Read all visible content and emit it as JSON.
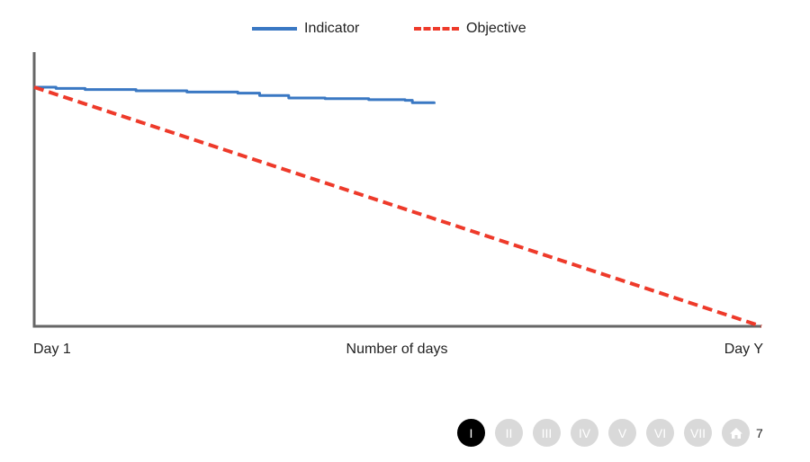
{
  "legend": {
    "indicator_label": "Indicator",
    "objective_label": "Objective"
  },
  "colors": {
    "indicator": "#3a78c3",
    "objective": "#ee3a2a",
    "axis": "#666666",
    "nav_active": "#000000",
    "nav_inactive": "#d9d9d9"
  },
  "chart_data": {
    "type": "line",
    "xlabel": "Number of days",
    "x_ticks": [
      "Day 1",
      "Day Y"
    ],
    "xlim": [
      0,
      1
    ],
    "ylim": [
      0,
      1
    ],
    "grid": false,
    "legend_position": "top-center",
    "series": [
      {
        "name": "Indicator",
        "style": "solid",
        "x": [
          0,
          0.03,
          0.07,
          0.14,
          0.21,
          0.28,
          0.31,
          0.35,
          0.4,
          0.46,
          0.51,
          0.52,
          0.55
        ],
        "y": [
          1.0,
          0.995,
          0.99,
          0.985,
          0.98,
          0.975,
          0.965,
          0.955,
          0.952,
          0.948,
          0.945,
          0.935,
          0.93
        ]
      },
      {
        "name": "Objective",
        "style": "dashed",
        "x": [
          0,
          1
        ],
        "y": [
          1.0,
          0.0
        ]
      }
    ]
  },
  "nav": {
    "buttons": [
      "I",
      "II",
      "III",
      "IV",
      "V",
      "VI",
      "VII"
    ],
    "active_index": 0,
    "home_icon": "home-icon",
    "page_number": "7"
  }
}
